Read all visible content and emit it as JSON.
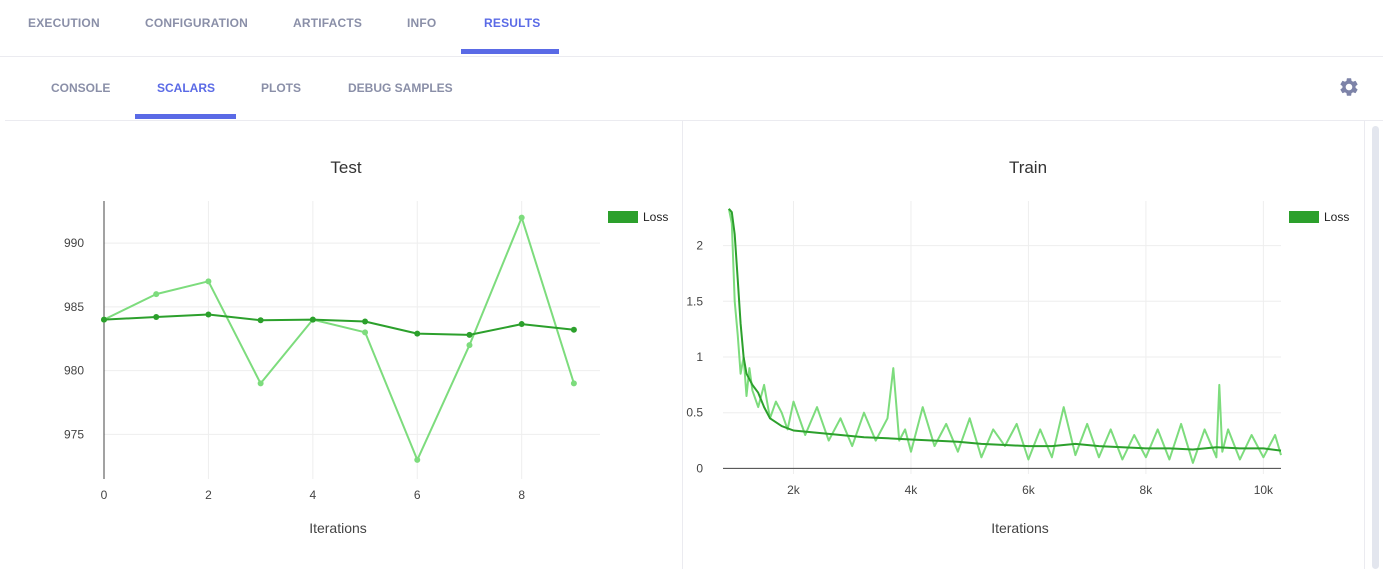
{
  "top_tabs": [
    {
      "label": "EXECUTION",
      "active": false
    },
    {
      "label": "CONFIGURATION",
      "active": false
    },
    {
      "label": "ARTIFACTS",
      "active": false
    },
    {
      "label": "INFO",
      "active": false
    },
    {
      "label": "RESULTS",
      "active": true
    }
  ],
  "sub_tabs": [
    {
      "label": "CONSOLE",
      "active": false
    },
    {
      "label": "SCALARS",
      "active": true
    },
    {
      "label": "PLOTS",
      "active": false
    },
    {
      "label": "DEBUG SAMPLES",
      "active": false
    }
  ],
  "icons": {
    "settings": "gear-icon"
  },
  "colors": {
    "accent": "#5a6ae6",
    "series_dark": "#2ca02c",
    "series_light": "#7ddc7d",
    "legend_swatch": "#2ca02c"
  },
  "chart_data": [
    {
      "type": "line",
      "title": "Test",
      "xlabel": "Iterations",
      "ylabel": "",
      "legend": [
        "Loss"
      ],
      "legend_position": "top-right",
      "xlim": [
        0,
        9.5
      ],
      "ylim": [
        971.5,
        993.3
      ],
      "xticks": [
        0,
        2,
        4,
        6,
        8
      ],
      "xtick_labels": [
        "0",
        "2",
        "4",
        "6",
        "8"
      ],
      "yticks": [
        975,
        980,
        985,
        990
      ],
      "ytick_labels": [
        "975",
        "980",
        "985",
        "990"
      ],
      "grid": true,
      "series": [
        {
          "name": "Loss",
          "style": "raw",
          "color": "#7ddc7d",
          "x": [
            0,
            1,
            2,
            3,
            4,
            5,
            6,
            7,
            8,
            9
          ],
          "y": [
            984,
            986,
            987,
            979,
            984,
            983,
            973,
            982,
            992,
            979
          ]
        },
        {
          "name": "Loss",
          "style": "smoothed",
          "color": "#2ca02c",
          "x": [
            0,
            1,
            2,
            3,
            4,
            5,
            6,
            7,
            8,
            9
          ],
          "y": [
            984.0,
            984.2,
            984.4,
            983.95,
            984.0,
            983.85,
            982.9,
            982.8,
            983.65,
            983.2
          ]
        }
      ]
    },
    {
      "type": "line",
      "title": "Train",
      "xlabel": "Iterations",
      "ylabel": "",
      "legend": [
        "Loss"
      ],
      "legend_position": "top-right",
      "xlim": [
        800,
        10300
      ],
      "ylim": [
        -0.05,
        2.4
      ],
      "xticks": [
        2000,
        4000,
        6000,
        8000,
        10000
      ],
      "xtick_labels": [
        "2k",
        "4k",
        "6k",
        "8k",
        "10k"
      ],
      "yticks": [
        0,
        0.5,
        1,
        1.5,
        2
      ],
      "ytick_labels": [
        "0",
        "0.5",
        "1",
        "1.5",
        "2"
      ],
      "grid": true,
      "series": [
        {
          "name": "Loss",
          "style": "raw",
          "color": "#7ddc7d",
          "x": [
            900,
            950,
            1000,
            1050,
            1100,
            1150,
            1200,
            1250,
            1300,
            1400,
            1500,
            1600,
            1700,
            1800,
            1900,
            2000,
            2200,
            2400,
            2600,
            2800,
            3000,
            3200,
            3400,
            3600,
            3700,
            3800,
            3900,
            4000,
            4200,
            4400,
            4600,
            4800,
            5000,
            5200,
            5400,
            5600,
            5800,
            6000,
            6200,
            6400,
            6600,
            6800,
            7000,
            7200,
            7400,
            7600,
            7800,
            8000,
            8200,
            8400,
            8600,
            8800,
            9000,
            9200,
            9250,
            9300,
            9400,
            9600,
            9800,
            10000,
            10200,
            10300
          ],
          "y": [
            2.33,
            2.2,
            1.5,
            1.2,
            0.85,
            1.0,
            0.65,
            0.9,
            0.7,
            0.55,
            0.75,
            0.45,
            0.6,
            0.5,
            0.35,
            0.6,
            0.3,
            0.55,
            0.25,
            0.45,
            0.2,
            0.5,
            0.25,
            0.45,
            0.9,
            0.25,
            0.35,
            0.15,
            0.55,
            0.2,
            0.4,
            0.15,
            0.45,
            0.1,
            0.35,
            0.2,
            0.4,
            0.08,
            0.35,
            0.1,
            0.55,
            0.12,
            0.4,
            0.1,
            0.35,
            0.08,
            0.3,
            0.1,
            0.35,
            0.08,
            0.4,
            0.05,
            0.35,
            0.1,
            0.75,
            0.15,
            0.35,
            0.08,
            0.3,
            0.1,
            0.3,
            0.12
          ]
        },
        {
          "name": "Loss",
          "style": "smoothed",
          "color": "#2ca02c",
          "x": [
            900,
            950,
            1000,
            1050,
            1100,
            1150,
            1200,
            1300,
            1400,
            1500,
            1600,
            1800,
            2000,
            2400,
            2800,
            3200,
            3600,
            4000,
            4400,
            4800,
            5200,
            5600,
            6000,
            6400,
            6800,
            7200,
            7600,
            8000,
            8400,
            8800,
            9200,
            9600,
            10000,
            10300
          ],
          "y": [
            2.33,
            2.3,
            2.1,
            1.7,
            1.3,
            1.0,
            0.85,
            0.75,
            0.68,
            0.55,
            0.45,
            0.38,
            0.34,
            0.32,
            0.3,
            0.28,
            0.27,
            0.26,
            0.25,
            0.24,
            0.22,
            0.21,
            0.2,
            0.2,
            0.22,
            0.2,
            0.19,
            0.18,
            0.18,
            0.17,
            0.19,
            0.18,
            0.18,
            0.16
          ]
        }
      ]
    }
  ]
}
